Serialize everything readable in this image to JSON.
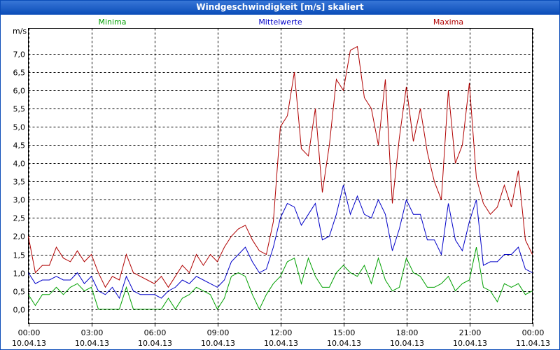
{
  "chart_data": {
    "type": "line",
    "title": "Windgeschwindigkeit [m/s] skaliert",
    "ylabel": "m/s",
    "xlim": [
      0,
      1440
    ],
    "xticks": [
      {
        "value": 0,
        "label": [
          "00:00",
          "10.04.13"
        ]
      },
      {
        "value": 180,
        "label": [
          "03:00",
          "10.04.13"
        ]
      },
      {
        "value": 360,
        "label": [
          "06:00",
          "10.04.13"
        ]
      },
      {
        "value": 540,
        "label": [
          "09:00",
          "10.04.13"
        ]
      },
      {
        "value": 720,
        "label": [
          "12:00",
          "10.04.13"
        ]
      },
      {
        "value": 900,
        "label": [
          "15:00",
          "10.04.13"
        ]
      },
      {
        "value": 1080,
        "label": [
          "18:00",
          "10.04.13"
        ]
      },
      {
        "value": 1260,
        "label": [
          "21:00",
          "10.04.13"
        ]
      },
      {
        "value": 1440,
        "label": [
          "00:00",
          "11.04.13"
        ]
      }
    ],
    "ylim": [
      -0.4,
      7.7
    ],
    "yticks": [
      {
        "value": 0,
        "label": "0,0"
      },
      {
        "value": 0.5,
        "label": "0,5"
      },
      {
        "value": 1,
        "label": "1,0"
      },
      {
        "value": 1.5,
        "label": "1,5"
      },
      {
        "value": 2,
        "label": "2,0"
      },
      {
        "value": 2.5,
        "label": "2,5"
      },
      {
        "value": 3,
        "label": "3,0"
      },
      {
        "value": 3.5,
        "label": "3,5"
      },
      {
        "value": 4,
        "label": "4,0"
      },
      {
        "value": 4.5,
        "label": "4,5"
      },
      {
        "value": 5,
        "label": "5,0"
      },
      {
        "value": 5.5,
        "label": "5,5"
      },
      {
        "value": 6,
        "label": "6,0"
      },
      {
        "value": 6.5,
        "label": "6,5"
      },
      {
        "value": 7,
        "label": "7,0"
      }
    ],
    "grid": true,
    "x": [
      0,
      20,
      40,
      60,
      80,
      100,
      120,
      140,
      160,
      180,
      200,
      220,
      240,
      260,
      280,
      300,
      320,
      340,
      360,
      380,
      400,
      420,
      440,
      460,
      480,
      500,
      520,
      540,
      560,
      580,
      600,
      620,
      640,
      660,
      680,
      700,
      720,
      740,
      760,
      780,
      800,
      820,
      840,
      860,
      880,
      900,
      920,
      940,
      960,
      980,
      1000,
      1020,
      1040,
      1060,
      1080,
      1100,
      1120,
      1140,
      1160,
      1180,
      1200,
      1220,
      1240,
      1260,
      1280,
      1300,
      1320,
      1340,
      1360,
      1380,
      1400,
      1420,
      1440
    ],
    "series": [
      {
        "name": "Minima",
        "color": "#00a000",
        "values": [
          0.4,
          0.1,
          0.4,
          0.4,
          0.6,
          0.4,
          0.6,
          0.7,
          0.5,
          0.6,
          0,
          0,
          0,
          0,
          0.6,
          0,
          0,
          0,
          0,
          0,
          0.3,
          0,
          0.3,
          0.4,
          0.6,
          0.5,
          0.4,
          0,
          0.3,
          0.9,
          1,
          0.9,
          0.4,
          0,
          0.4,
          0.7,
          0.9,
          1.3,
          1.4,
          0.7,
          1.4,
          0.9,
          0.6,
          0.6,
          1,
          1.2,
          1,
          0.9,
          1.2,
          0.7,
          1.4,
          0.8,
          0.5,
          0.6,
          1.4,
          1,
          0.9,
          0.6,
          0.6,
          0.7,
          0.9,
          0.5,
          0.7,
          0.8,
          1.7,
          0.6,
          0.5,
          0.2,
          0.7,
          0.6,
          0.7,
          0.4,
          0.5
        ]
      },
      {
        "name": "Mittelwerte",
        "color": "#0000c8",
        "values": [
          1,
          0.7,
          0.8,
          0.8,
          0.9,
          0.8,
          0.8,
          1,
          0.7,
          0.9,
          0.5,
          0.4,
          0.6,
          0.3,
          0.9,
          0.5,
          0.4,
          0.4,
          0.4,
          0.3,
          0.5,
          0.6,
          0.8,
          0.7,
          0.9,
          0.8,
          0.7,
          0.6,
          0.8,
          1.3,
          1.5,
          1.7,
          1.3,
          1,
          1.1,
          1.7,
          2.5,
          2.9,
          2.8,
          2.3,
          2.6,
          2.9,
          1.9,
          2,
          2.6,
          3.4,
          2.6,
          3.1,
          2.6,
          2.5,
          3,
          2.6,
          1.6,
          2.2,
          3,
          2.6,
          2.6,
          1.9,
          1.9,
          1.5,
          2.9,
          1.9,
          1.6,
          2.4,
          3,
          1.2,
          1.3,
          1.3,
          1.5,
          1.5,
          1.7,
          1.1,
          1
        ]
      },
      {
        "name": "Maxima",
        "color": "#b00000",
        "values": [
          2,
          1,
          1.2,
          1.2,
          1.7,
          1.4,
          1.3,
          1.6,
          1.3,
          1.5,
          1,
          0.6,
          0.9,
          0.8,
          1.5,
          1,
          0.9,
          0.8,
          0.7,
          0.9,
          0.6,
          0.9,
          1.2,
          1,
          1.5,
          1.2,
          1.5,
          1.3,
          1.7,
          2,
          2.2,
          2.3,
          1.9,
          1.6,
          1.5,
          2.4,
          5,
          5.3,
          6.5,
          4.4,
          4.2,
          5.5,
          3.2,
          4.5,
          6.3,
          6,
          7.1,
          7.2,
          5.8,
          5.5,
          4.5,
          6.3,
          2.9,
          4.7,
          6.1,
          4.6,
          5.5,
          4.3,
          3.5,
          3,
          6,
          4,
          4.5,
          6.2,
          3.6,
          2.9,
          2.6,
          2.8,
          3.4,
          2.8,
          3.8,
          1.9,
          1.5
        ]
      }
    ]
  }
}
